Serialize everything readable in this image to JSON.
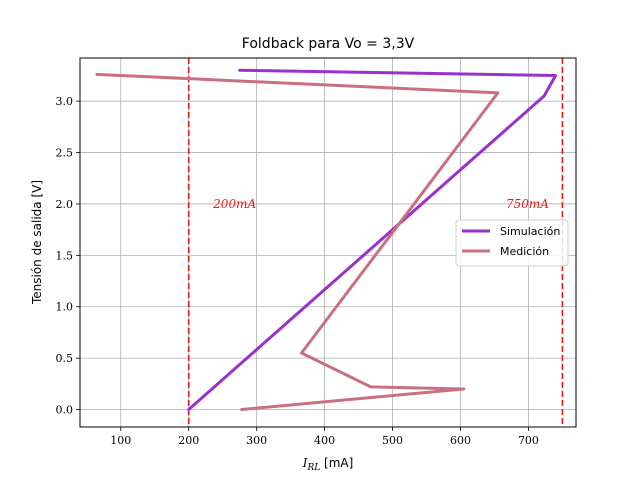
{
  "chart_data": {
    "type": "line",
    "title": "Foldback para Vo = 3,3V",
    "xlabel": {
      "prefix": "I",
      "sub": "RL",
      "suffix": " [mA]"
    },
    "ylabel": "Tensión de salida [V]",
    "xlim": [
      40,
      770
    ],
    "ylim": [
      -0.17,
      3.42
    ],
    "x_ticks": [
      100,
      200,
      300,
      400,
      500,
      600,
      700
    ],
    "y_ticks": [
      "0.0",
      "0.5",
      "1.0",
      "1.5",
      "2.0",
      "2.5",
      "3.0"
    ],
    "grid": true,
    "legend_position": "right",
    "series": [
      {
        "name": "Simulación",
        "color": "#9932CC",
        "points": [
          [
            200,
            0.0
          ],
          [
            723,
            3.05
          ],
          [
            740,
            3.25
          ],
          [
            275,
            3.3
          ]
        ]
      },
      {
        "name": "Medición",
        "color": "#C97080",
        "points": [
          [
            278,
            0.0
          ],
          [
            605,
            0.2
          ],
          [
            468,
            0.22
          ],
          [
            366,
            0.55
          ],
          [
            655,
            3.08
          ],
          [
            65,
            3.26
          ]
        ]
      }
    ],
    "vlines": [
      {
        "x": 200,
        "color": "#E8191A",
        "label": "200mA",
        "label_y": 2.0,
        "label_x": 236
      },
      {
        "x": 750,
        "color": "#E8191A",
        "label": "750mA",
        "label_y": 2.0,
        "label_x": 667
      }
    ]
  }
}
